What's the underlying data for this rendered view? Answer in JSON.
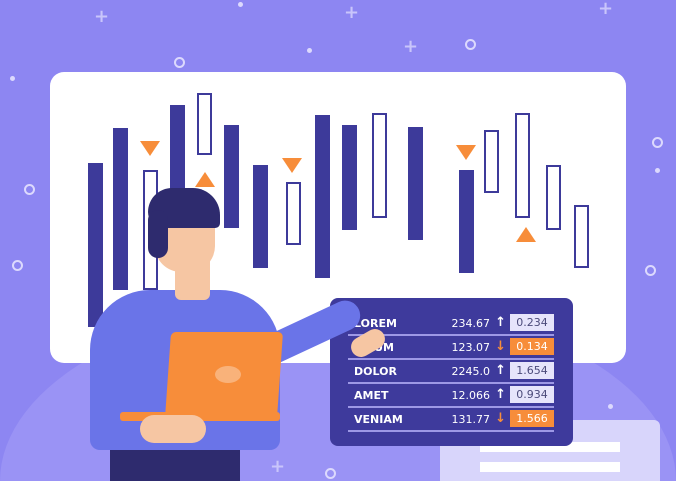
{
  "colors": {
    "background": "#8d86f2",
    "board": "#ffffff",
    "candle": "#3d3a9a",
    "accent": "#f78d3a",
    "panel": "#3e3a9c"
  },
  "table": {
    "rows": [
      {
        "name": "LOREM",
        "value": "234.67",
        "direction": "up",
        "change": "0.234"
      },
      {
        "name": "IPSUM",
        "value": "123.07",
        "direction": "down",
        "change": "0.134"
      },
      {
        "name": "DOLOR",
        "value": "2245.0",
        "direction": "up",
        "change": "1.654"
      },
      {
        "name": "AMET",
        "value": "12.066",
        "direction": "up",
        "change": "0.934"
      },
      {
        "name": "VENIAM",
        "value": "131.77",
        "direction": "down",
        "change": "1.566"
      }
    ]
  }
}
